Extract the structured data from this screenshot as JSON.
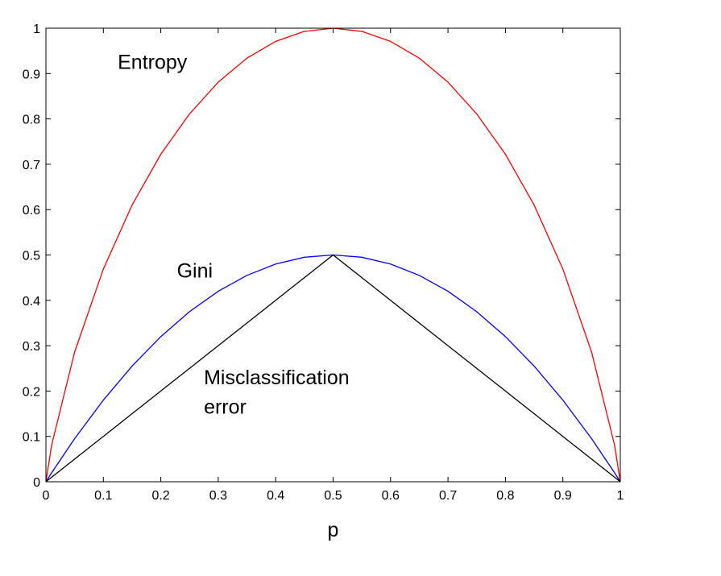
{
  "chart_data": {
    "type": "line",
    "title": "",
    "xlabel": "p",
    "ylabel": "",
    "xlim": [
      0,
      1
    ],
    "ylim": [
      0,
      1
    ],
    "grid": false,
    "x_ticks": [
      0,
      0.1,
      0.2,
      0.3,
      0.4,
      0.5,
      0.6,
      0.7,
      0.8,
      0.9,
      1
    ],
    "x_tick_labels": [
      "0",
      "0.1",
      "0.2",
      "0.3",
      "0.4",
      "0.5",
      "0.6",
      "0.7",
      "0.8",
      "0.9",
      "1"
    ],
    "y_ticks": [
      0,
      0.1,
      0.2,
      0.3,
      0.4,
      0.5,
      0.6,
      0.7,
      0.8,
      0.9,
      1
    ],
    "y_tick_labels": [
      "0",
      "0.1",
      "0.2",
      "0.3",
      "0.4",
      "0.5",
      "0.6",
      "0.7",
      "0.8",
      "0.9",
      "1"
    ],
    "x": [
      0,
      0.01,
      0.05,
      0.1,
      0.15,
      0.2,
      0.25,
      0.3,
      0.35,
      0.4,
      0.45,
      0.5,
      0.55,
      0.6,
      0.65,
      0.7,
      0.75,
      0.8,
      0.85,
      0.9,
      0.95,
      0.99,
      1
    ],
    "series": [
      {
        "name": "Entropy",
        "color": "#ff0000",
        "values": [
          0,
          0.081,
          0.286,
          0.469,
          0.61,
          0.722,
          0.811,
          0.881,
          0.934,
          0.971,
          0.993,
          1,
          0.993,
          0.971,
          0.934,
          0.881,
          0.811,
          0.722,
          0.61,
          0.469,
          0.286,
          0.081,
          0
        ]
      },
      {
        "name": "Gini",
        "color": "#0000ff",
        "values": [
          0,
          0.0198,
          0.095,
          0.18,
          0.255,
          0.32,
          0.375,
          0.42,
          0.455,
          0.48,
          0.495,
          0.5,
          0.495,
          0.48,
          0.455,
          0.42,
          0.375,
          0.32,
          0.255,
          0.18,
          0.095,
          0.0198,
          0
        ]
      },
      {
        "name": "Misclassification error",
        "color": "#000000",
        "values": [
          0,
          0.01,
          0.05,
          0.1,
          0.15,
          0.2,
          0.25,
          0.3,
          0.35,
          0.4,
          0.45,
          0.5,
          0.45,
          0.4,
          0.35,
          0.3,
          0.25,
          0.2,
          0.15,
          0.1,
          0.05,
          0.01,
          0
        ]
      }
    ],
    "annotations": [
      {
        "name": "entropy-label",
        "text": "Entropy",
        "x": 0.125,
        "y": 0.91
      },
      {
        "name": "gini-label",
        "text": "Gini",
        "x": 0.228,
        "y": 0.45
      },
      {
        "name": "misclassification-label-line1",
        "text": "Misclassification",
        "x": 0.275,
        "y": 0.215
      },
      {
        "name": "misclassification-label-line2",
        "text": "error",
        "x": 0.275,
        "y": 0.15
      }
    ]
  }
}
